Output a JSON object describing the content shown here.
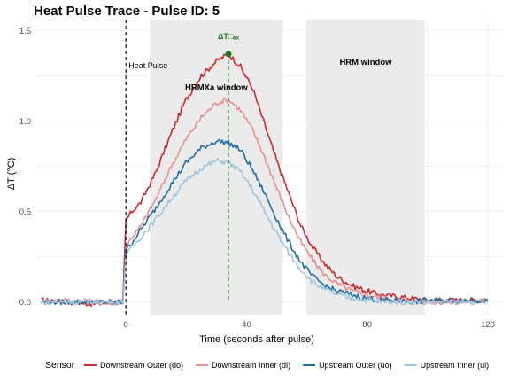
{
  "chart_data": {
    "type": "line",
    "title": "Heat Pulse Trace - Pulse ID: 5",
    "xlabel": "Time (seconds after pulse)",
    "ylabel": "ΔT (°C)",
    "xlim": [
      -30,
      125
    ],
    "ylim": [
      -0.07,
      1.56
    ],
    "xticks": [
      0,
      40,
      80,
      120
    ],
    "yticks": [
      0.0,
      0.5,
      1.0,
      1.5
    ],
    "xtick_labels": [
      "0",
      "40",
      "80",
      "120"
    ],
    "ytick_labels": [
      "0.0",
      "0.5",
      "1.0",
      "1.5"
    ],
    "grid": true,
    "legend_position": "bottom",
    "legend_title": "Sensor",
    "windows": [
      {
        "label": "HRMXa window",
        "x_start": 8,
        "x_end": 52
      },
      {
        "label": "HRM window",
        "x_start": 60,
        "x_end": 99
      }
    ],
    "heat_pulse": {
      "label": "Heat Pulse",
      "x": 0
    },
    "max_marker": {
      "label": "ΔT□ₐₓ",
      "x": 34,
      "y": 1.37
    },
    "series": [
      {
        "name": "Downstream Outer (do)",
        "color": "#d0262c",
        "x": [
          -28,
          -20,
          -10,
          -1,
          0,
          2,
          5,
          10,
          15,
          20,
          25,
          30,
          34,
          38,
          42,
          46,
          50,
          54,
          58,
          62,
          66,
          70,
          75,
          80,
          85,
          90,
          95,
          100,
          110,
          120
        ],
        "values": [
          0.01,
          0.0,
          -0.01,
          0.0,
          0.45,
          0.5,
          0.55,
          0.72,
          0.93,
          1.12,
          1.25,
          1.33,
          1.37,
          1.3,
          1.18,
          0.98,
          0.78,
          0.6,
          0.42,
          0.3,
          0.21,
          0.14,
          0.09,
          0.06,
          0.04,
          0.03,
          0.02,
          0.01,
          0.01,
          0.01
        ]
      },
      {
        "name": "Downstream Inner (di)",
        "color": "#e8908e",
        "x": [
          -28,
          -20,
          -10,
          -1,
          0,
          2,
          5,
          10,
          15,
          20,
          25,
          30,
          34,
          38,
          42,
          46,
          50,
          54,
          58,
          62,
          66,
          70,
          75,
          80,
          85,
          90,
          95,
          100,
          110,
          120
        ],
        "values": [
          0.0,
          0.01,
          0.0,
          0.0,
          0.3,
          0.36,
          0.42,
          0.57,
          0.75,
          0.9,
          1.02,
          1.1,
          1.12,
          1.06,
          0.95,
          0.8,
          0.63,
          0.47,
          0.33,
          0.23,
          0.15,
          0.1,
          0.06,
          0.04,
          0.02,
          0.01,
          0.0,
          0.0,
          0.0,
          0.01
        ]
      },
      {
        "name": "Upstream Outer (uo)",
        "color": "#1f6fa8",
        "x": [
          -28,
          -20,
          -10,
          -1,
          0,
          2,
          5,
          10,
          15,
          20,
          25,
          30,
          34,
          38,
          42,
          46,
          50,
          54,
          58,
          62,
          66,
          70,
          75,
          80,
          85,
          90,
          95,
          100,
          110,
          120
        ],
        "values": [
          0.0,
          0.0,
          0.0,
          0.0,
          0.28,
          0.33,
          0.4,
          0.52,
          0.65,
          0.77,
          0.85,
          0.89,
          0.88,
          0.84,
          0.73,
          0.6,
          0.46,
          0.33,
          0.22,
          0.14,
          0.09,
          0.06,
          0.04,
          0.02,
          0.01,
          0.01,
          0.0,
          0.01,
          0.01,
          0.01
        ]
      },
      {
        "name": "Upstream Inner (ui)",
        "color": "#9ec5dd",
        "x": [
          -28,
          -20,
          -10,
          -1,
          0,
          2,
          5,
          10,
          15,
          20,
          25,
          30,
          34,
          38,
          42,
          46,
          50,
          54,
          58,
          62,
          66,
          70,
          75,
          80,
          85,
          90,
          95,
          100,
          110,
          120
        ],
        "values": [
          0.0,
          0.0,
          0.0,
          0.0,
          0.26,
          0.3,
          0.36,
          0.46,
          0.57,
          0.67,
          0.74,
          0.78,
          0.77,
          0.72,
          0.62,
          0.5,
          0.38,
          0.27,
          0.18,
          0.11,
          0.07,
          0.04,
          0.02,
          0.01,
          0.0,
          0.0,
          0.0,
          0.0,
          0.0,
          0.0
        ]
      }
    ]
  }
}
